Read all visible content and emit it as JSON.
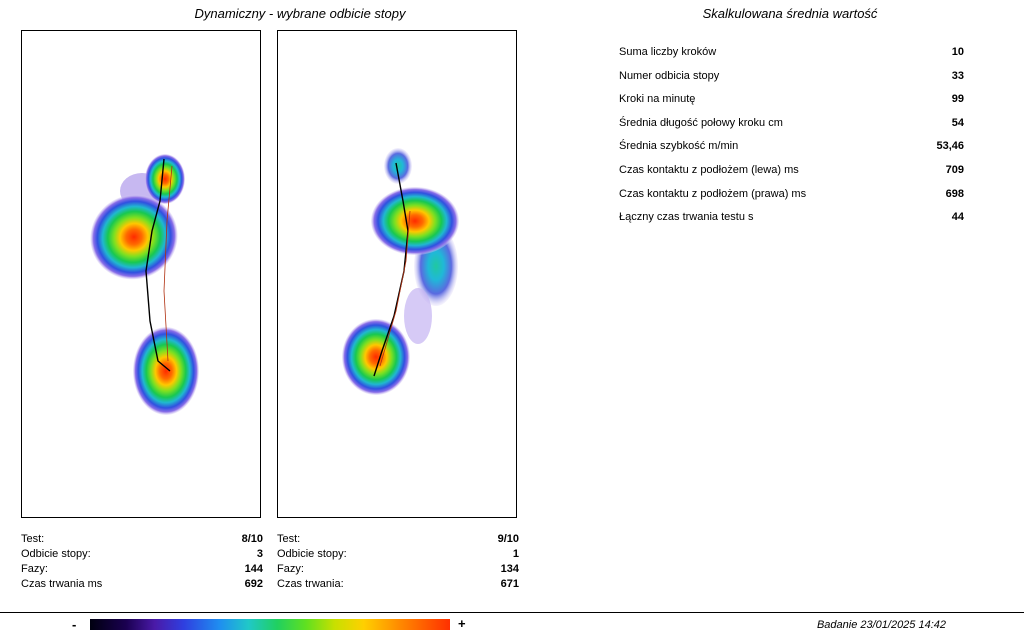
{
  "left_title": "Dynamiczny - wybrane odbicie stopy",
  "right_title": "Skalkulowana średnia wartość",
  "panels": [
    {
      "info": [
        {
          "label": "Test:",
          "value": "8/10"
        },
        {
          "label": "Odbicie stopy:",
          "value": "3"
        },
        {
          "label": "Fazy:",
          "value": "144"
        },
        {
          "label": "Czas trwania ms",
          "value": "692"
        }
      ]
    },
    {
      "info": [
        {
          "label": "Test:",
          "value": "9/10"
        },
        {
          "label": "Odbicie stopy:",
          "value": "1"
        },
        {
          "label": "Fazy:",
          "value": "134"
        },
        {
          "label": "Czas trwania:",
          "value": "671"
        }
      ]
    }
  ],
  "stats": [
    {
      "label": "Suma liczby kroków",
      "value": "10"
    },
    {
      "label": "Numer odbicia stopy",
      "value": "33"
    },
    {
      "label": "Kroki na minutę",
      "value": "99"
    },
    {
      "label": "Średnia długość połowy kroku cm",
      "value": "54"
    },
    {
      "label": "Średnia szybkość m/min",
      "value": "53,46"
    },
    {
      "label": "Czas kontaktu z podłożem (lewa) ms",
      "value": "709"
    },
    {
      "label": "Czas kontaktu z podłożem (prawa) ms",
      "value": "698"
    },
    {
      "label": "Łączny czas trwania testu s",
      "value": "44"
    }
  ],
  "scale": {
    "min_label": "-",
    "max_label": "+"
  },
  "footer": {
    "exam": "Badanie 23/01/2025 14:42"
  },
  "colors": {
    "heat_low": "#5a2ad0",
    "heat_mid": "#20d060",
    "heat_high": "#ff3000"
  }
}
